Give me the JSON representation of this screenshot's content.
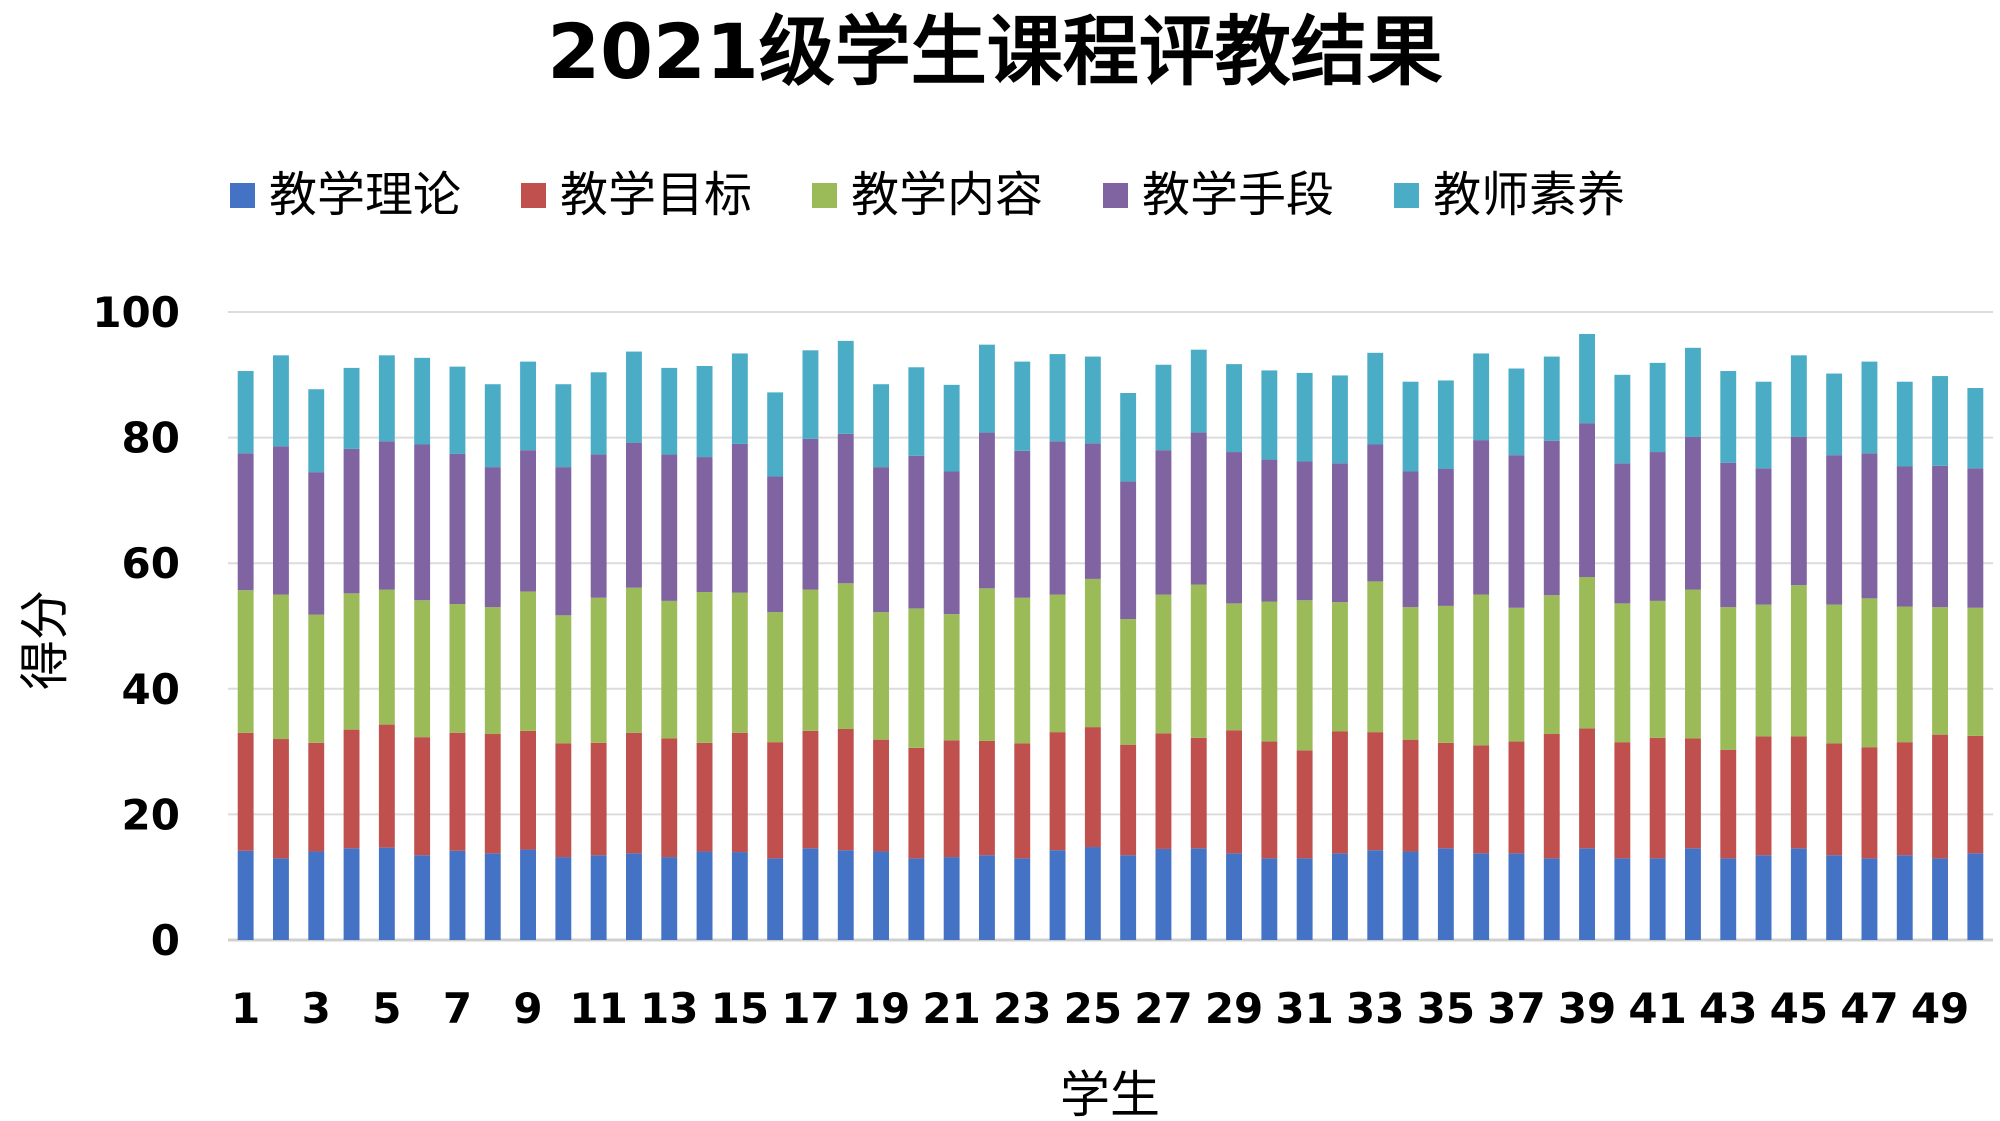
{
  "chart_data": {
    "type": "bar",
    "stacked": true,
    "title": "2021级学生课程评教结果",
    "xlabel": "学生",
    "ylabel": "得分",
    "ylim": [
      0,
      100
    ],
    "yticks": [
      0,
      20,
      40,
      60,
      80,
      100
    ],
    "grid": true,
    "legend_position": "top",
    "categories": [
      1,
      2,
      3,
      4,
      5,
      6,
      7,
      8,
      9,
      10,
      11,
      12,
      13,
      14,
      15,
      16,
      17,
      18,
      19,
      20,
      21,
      22,
      23,
      24,
      25,
      26,
      27,
      28,
      29,
      30,
      31,
      32,
      33,
      34,
      35,
      36,
      37,
      38,
      39,
      40,
      41,
      42,
      43,
      44,
      45,
      46,
      47,
      48,
      49,
      50
    ],
    "xtick_labels": [
      "1",
      "",
      "3",
      "",
      "5",
      "",
      "7",
      "",
      "9",
      "",
      "11",
      "",
      "13",
      "",
      "15",
      "",
      "17",
      "",
      "19",
      "",
      "21",
      "",
      "23",
      "",
      "25",
      "",
      "27",
      "",
      "29",
      "",
      "31",
      "",
      "33",
      "",
      "35",
      "",
      "37",
      "",
      "39",
      "",
      "41",
      "",
      "43",
      "",
      "45",
      "",
      "47",
      "",
      "49",
      ""
    ],
    "series": [
      {
        "name": "教学理论",
        "color": "#4472C4",
        "values": [
          14.2,
          13,
          14.1,
          14.6,
          14.7,
          13.5,
          14.2,
          13.8,
          14.4,
          13.2,
          13.5,
          13.8,
          13.2,
          14.1,
          14,
          13,
          14.6,
          14.3,
          14.1,
          13,
          13.2,
          13.5,
          13,
          14.3,
          14.8,
          13.5,
          14.5,
          14.6,
          13.8,
          13,
          13,
          13.8,
          14.3,
          14.1,
          14.6,
          13.8,
          13.8,
          13,
          14.6,
          13,
          13,
          14.6,
          13,
          13.5,
          14.6,
          13.5,
          13,
          13.5,
          13,
          13.8
        ]
      },
      {
        "name": "教学目标",
        "color": "#C0504D",
        "values": [
          18.8,
          19,
          17.3,
          18.9,
          19.6,
          18.8,
          18.8,
          19,
          18.9,
          18.1,
          17.9,
          19.2,
          18.9,
          17.3,
          19,
          18.5,
          18.7,
          19.3,
          17.8,
          17.6,
          18.6,
          18.2,
          18.3,
          18.8,
          19.1,
          17.6,
          18.4,
          17.6,
          19.6,
          18.6,
          17.2,
          19.4,
          18.8,
          17.8,
          16.8,
          17.2,
          17.8,
          19.8,
          19.1,
          18.5,
          19.2,
          17.5,
          17.3,
          18.9,
          17.8,
          17.8,
          17.7,
          18,
          19.7,
          18.7
        ]
      },
      {
        "name": "教学内容",
        "color": "#9BBB59",
        "values": [
          22.7,
          23,
          20.4,
          21.7,
          21.5,
          21.8,
          20.5,
          20.2,
          22.2,
          20.4,
          23.1,
          23.1,
          21.9,
          24,
          22.3,
          20.7,
          22.5,
          23.2,
          20.3,
          22.2,
          20.1,
          24.3,
          23.2,
          21.9,
          23.6,
          20,
          22.1,
          24.4,
          20.2,
          22.3,
          23.9,
          20.6,
          24,
          21.1,
          21.8,
          24,
          21.3,
          22.1,
          24.1,
          22.1,
          21.8,
          23.7,
          22.7,
          21,
          24.1,
          22.1,
          23.7,
          21.6,
          20.3,
          20.4
        ]
      },
      {
        "name": "教学手段",
        "color": "#8064A2",
        "values": [
          21.8,
          23.6,
          22.7,
          23,
          23.6,
          24.8,
          23.9,
          22.3,
          22.5,
          23.6,
          22.8,
          23.1,
          23.3,
          21.5,
          23.7,
          21.6,
          24,
          23.8,
          23.1,
          24.3,
          22.7,
          24.8,
          23.4,
          24.4,
          21.6,
          21.9,
          23,
          24.2,
          24.1,
          22.6,
          22.1,
          22.1,
          21.8,
          21.6,
          21.8,
          24.6,
          24.3,
          24.6,
          24.5,
          22.3,
          23.7,
          24.3,
          23,
          21.7,
          23.6,
          23.8,
          23.1,
          22.3,
          22.5,
          22.2
        ]
      },
      {
        "name": "教师素养",
        "color": "#4BACC6",
        "values": [
          13.1,
          14.5,
          13.2,
          12.9,
          13.7,
          13.8,
          13.9,
          13.2,
          14.1,
          13.2,
          13.1,
          14.5,
          13.8,
          14.5,
          14.4,
          13.4,
          14.1,
          14.8,
          13.2,
          14.1,
          13.8,
          14,
          14.2,
          13.9,
          13.8,
          14.1,
          13.6,
          13.2,
          14,
          14.2,
          14.1,
          14,
          14.6,
          14.3,
          14.1,
          13.8,
          13.8,
          13.4,
          14.2,
          14.1,
          14.2,
          14.2,
          14.6,
          13.8,
          13,
          13,
          14.6,
          13.5,
          14.3,
          12.8
        ]
      }
    ]
  }
}
